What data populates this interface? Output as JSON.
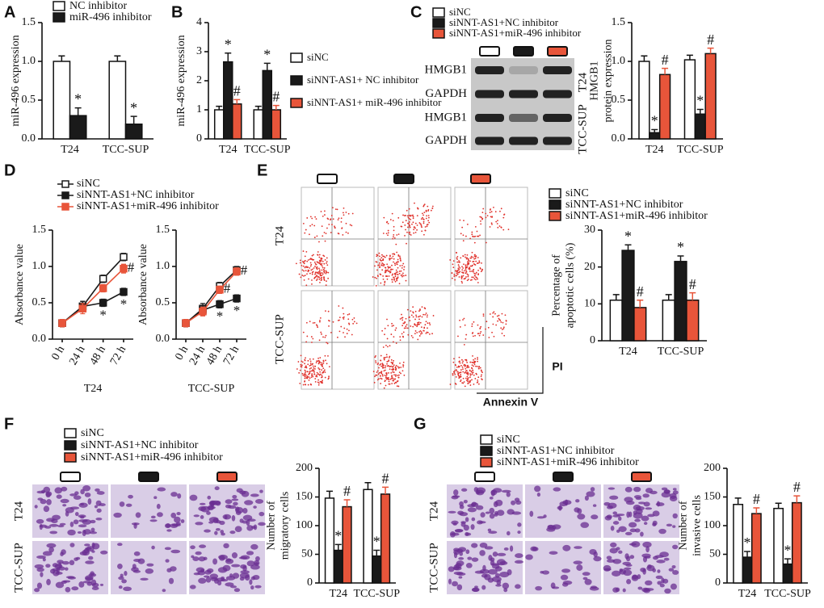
{
  "chart_data": [
    {
      "type": "bar",
      "label": "A",
      "ylabel": [
        "miR-496 expression"
      ],
      "categories": [
        "T24",
        "TCC-SUP"
      ],
      "ylim": [
        0,
        1.5
      ],
      "yticks": [
        {
          "value": 0,
          "label": "0.0"
        },
        {
          "value": 0.5,
          "label": "0.5"
        },
        {
          "value": 1.0,
          "label": "1.0"
        },
        {
          "value": 1.5,
          "label": "1.5"
        }
      ],
      "series": [
        {
          "name": "NC inhibitor",
          "color": "#ffffff",
          "values": [
            1.0,
            1.0
          ],
          "errors": [
            0.07,
            0.07
          ]
        },
        {
          "name": "miR-496 inhibitor",
          "color": "#1a1a1a",
          "values": [
            0.3,
            0.19
          ],
          "errors": [
            0.1,
            0.1
          ],
          "annotations": [
            "*",
            "*"
          ]
        }
      ]
    },
    {
      "type": "bar",
      "label": "B",
      "ylabel": [
        "miR-496 expression"
      ],
      "categories": [
        "T24",
        "TCC-SUP"
      ],
      "ylim": [
        0,
        4
      ],
      "yticks": [
        0,
        1,
        2,
        3,
        4
      ],
      "series": [
        {
          "name": "siNC",
          "color": "#ffffff",
          "values": [
            1.0,
            1.0
          ],
          "errors": [
            0.12,
            0.12
          ]
        },
        {
          "name": "siNNT-AS1+ NC inhibitor",
          "color": "#1a1a1a",
          "values": [
            2.65,
            2.35
          ],
          "errors": [
            0.3,
            0.25
          ],
          "annotations": [
            "*",
            "*"
          ]
        },
        {
          "name": "siNNT-AS1+ miR-496 inhibitor",
          "color": "#e8553a",
          "values": [
            1.2,
            1.0
          ],
          "errors": [
            0.15,
            0.15
          ],
          "annotations": [
            "#",
            "#"
          ]
        }
      ]
    },
    {
      "type": "bar",
      "label": "C",
      "ylabel": [
        "HMGB1",
        "protein expression"
      ],
      "categories": [
        "T24",
        "TCC-SUP"
      ],
      "blot_rows": [
        "HMGB1",
        "GAPDH",
        "HMGB1",
        "GAPDH"
      ],
      "blot_cell_lines": [
        "T24",
        "TCC-SUP"
      ],
      "ylim": [
        0,
        1.5
      ],
      "yticks": [
        {
          "value": 0,
          "label": "0.0"
        },
        {
          "value": 0.5,
          "label": "0.5"
        },
        {
          "value": 1.0,
          "label": "1.0"
        },
        {
          "value": 1.5,
          "label": "1.5"
        }
      ],
      "series": [
        {
          "name": "siNC",
          "color": "#ffffff",
          "values": [
            1.0,
            1.02
          ],
          "errors": [
            0.07,
            0.06
          ]
        },
        {
          "name": "siNNT-AS1+NC inhibitor",
          "color": "#1a1a1a",
          "values": [
            0.08,
            0.32
          ],
          "errors": [
            0.04,
            0.06
          ],
          "annotations": [
            "*",
            "*"
          ]
        },
        {
          "name": "siNNT-AS1+miR-496 inhibitor",
          "color": "#e8553a",
          "values": [
            0.83,
            1.1
          ],
          "errors": [
            0.08,
            0.07
          ],
          "annotations": [
            "#",
            "#"
          ]
        }
      ]
    },
    {
      "type": "line",
      "label": "D",
      "ylabel": "Absorbance value",
      "categories": [
        "0 h",
        "24 h",
        "48 h",
        "72 h"
      ],
      "ylim": [
        0,
        1.5
      ],
      "yticks": [
        {
          "value": 0,
          "label": "0.0"
        },
        {
          "value": 0.5,
          "label": "0.5"
        },
        {
          "value": 1.0,
          "label": "1.0"
        },
        {
          "value": 1.5,
          "label": "1.5"
        }
      ],
      "series": [
        {
          "name": "siNC",
          "color": "#1a1a1a",
          "marker": "open-square"
        },
        {
          "name": "siNNT-AS1+NC inhibitor",
          "color": "#1a1a1a",
          "marker": "square"
        },
        {
          "name": "siNNT-AS1+miR-496 inhibitor",
          "color": "#e8553a",
          "marker": "square"
        }
      ],
      "subplots": [
        {
          "xlabel": "T24",
          "series": [
            {
              "values": [
                0.22,
                0.45,
                0.83,
                1.13
              ],
              "errors": [
                0.05,
                0.07,
                0.05,
                0.05
              ]
            },
            {
              "values": [
                0.22,
                0.45,
                0.5,
                0.65
              ],
              "errors": [
                0.05,
                0.07,
                0.05,
                0.05
              ],
              "annotations": [
                null,
                null,
                "*",
                "*"
              ]
            },
            {
              "values": [
                0.22,
                0.42,
                0.7,
                0.97
              ],
              "errors": [
                0.05,
                0.07,
                0.05,
                0.06
              ],
              "annotations": [
                null,
                null,
                null,
                "#"
              ]
            }
          ]
        },
        {
          "xlabel": "TCC-SUP",
          "series": [
            {
              "values": [
                0.22,
                0.42,
                0.73,
                0.95
              ],
              "errors": [
                0.05,
                0.07,
                0.05,
                0.05
              ]
            },
            {
              "values": [
                0.22,
                0.4,
                0.48,
                0.56
              ],
              "errors": [
                0.05,
                0.06,
                0.05,
                0.05
              ],
              "annotations": [
                null,
                null,
                "*",
                "*"
              ]
            },
            {
              "values": [
                0.22,
                0.38,
                0.68,
                0.93
              ],
              "errors": [
                0.05,
                0.06,
                0.05,
                0.05
              ],
              "annotations": [
                null,
                null,
                "#",
                "#"
              ]
            }
          ]
        }
      ]
    },
    {
      "type": "bar",
      "label": "E",
      "ylabel": [
        "Percentage of",
        "apoptotic cells (%)"
      ],
      "categories": [
        "T24",
        "TCC-SUP"
      ],
      "image_rows": [
        "T24",
        "TCC-SUP"
      ],
      "flow_axes": {
        "y": "PI",
        "x": "Annexin V"
      },
      "ylim": [
        0,
        30
      ],
      "yticks": [
        0,
        10,
        20,
        30
      ],
      "series": [
        {
          "name": "siNC",
          "color": "#ffffff",
          "values": [
            11,
            11
          ],
          "errors": [
            1.5,
            1.5
          ]
        },
        {
          "name": "siNNT-AS1+NC inhibitor",
          "color": "#1a1a1a",
          "values": [
            24.5,
            21.5
          ],
          "errors": [
            1.5,
            1.5
          ],
          "annotations": [
            "*",
            "*"
          ]
        },
        {
          "name": "siNNT-AS1+miR-496 inhibitor",
          "color": "#e8553a",
          "values": [
            9,
            11
          ],
          "errors": [
            2,
            2
          ],
          "annotations": [
            "#",
            "#"
          ]
        }
      ]
    },
    {
      "type": "bar",
      "label": "F",
      "ylabel": [
        "Number of",
        "migratory cells"
      ],
      "categories": [
        "T24",
        "TCC-SUP"
      ],
      "image_rows": [
        "T24",
        "TCC-SUP"
      ],
      "ylim": [
        0,
        200
      ],
      "yticks": [
        0,
        50,
        100,
        150,
        200
      ],
      "series": [
        {
          "name": "siNC",
          "color": "#ffffff",
          "values": [
            148,
            163
          ],
          "errors": [
            12,
            12
          ]
        },
        {
          "name": "siNNT-AS1+NC inhibitor",
          "color": "#1a1a1a",
          "values": [
            57,
            47
          ],
          "errors": [
            10,
            10
          ],
          "annotations": [
            "*",
            "*"
          ]
        },
        {
          "name": "siNNT-AS1+miR-496 inhibitor",
          "color": "#e8553a",
          "values": [
            133,
            155
          ],
          "errors": [
            12,
            12
          ],
          "annotations": [
            "#",
            "#"
          ]
        }
      ]
    },
    {
      "type": "bar",
      "label": "G",
      "ylabel": [
        "Number of",
        "invasive cells"
      ],
      "categories": [
        "T24",
        "TCC-SUP"
      ],
      "image_rows": [
        "T24",
        "TCC-SUP"
      ],
      "ylim": [
        0,
        200
      ],
      "yticks": [
        0,
        50,
        100,
        150,
        200
      ],
      "series": [
        {
          "name": "siNC",
          "color": "#ffffff",
          "values": [
            137,
            130
          ],
          "errors": [
            11,
            9
          ]
        },
        {
          "name": "siNNT-AS1+NC inhibitor",
          "color": "#1a1a1a",
          "values": [
            45,
            33
          ],
          "errors": [
            10,
            9
          ],
          "annotations": [
            "*",
            "*"
          ]
        },
        {
          "name": "siNNT-AS1+miR-496 inhibitor",
          "color": "#e8553a",
          "values": [
            121,
            140
          ],
          "errors": [
            10,
            12
          ],
          "annotations": [
            "#",
            "#"
          ]
        }
      ]
    }
  ]
}
